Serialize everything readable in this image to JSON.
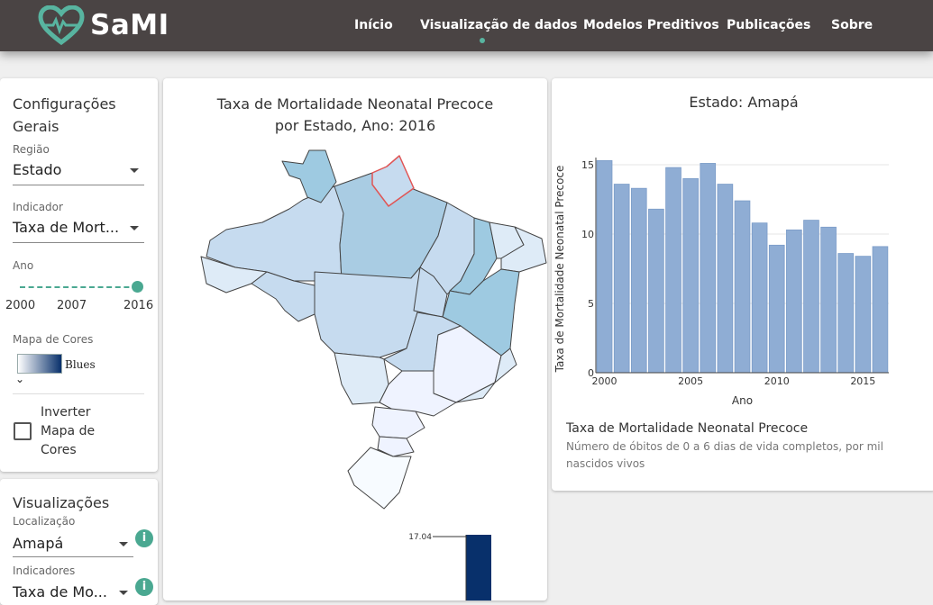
{
  "app": {
    "name": "SaMI"
  },
  "nav": {
    "items": [
      "Início",
      "Visualização de dados",
      "Modelos Preditivos",
      "Publicações",
      "Sobre"
    ],
    "active": "Visualização de dados"
  },
  "config": {
    "title": "Configurações Gerais",
    "regiao_label": "Região",
    "regiao_value": "Estado",
    "indicador_label": "Indicador",
    "indicador_value": "Taxa de Mort...",
    "ano_label": "Ano",
    "ano_ticks": [
      "2000",
      "2007",
      "2016"
    ],
    "ano_selected": 2016,
    "ano_range": [
      2000,
      2016
    ],
    "mapa_label": "Mapa de Cores",
    "mapa_value": "Blues",
    "inverter_label": "Inverter Mapa de Cores",
    "inverter_checked": false
  },
  "vis": {
    "title": "Visualizações",
    "localizacao_label": "Localização",
    "localizacao_value": "Amapá",
    "indicadores_label": "Indicadores",
    "indicadores_value": "Taxa de Mo..."
  },
  "map": {
    "title_line1": "Taxa de Mortalidade Neonatal Precoce",
    "title_line2": "por Estado, Ano: 2016",
    "scale_max_label": "17.04",
    "highlight_color": "#e05555"
  },
  "chart_data": {
    "type": "bar",
    "title": "Estado: Amapá",
    "xlabel": "Ano",
    "ylabel": "Taxa de Mortalidade Neonatal Precoce",
    "x": [
      2000,
      2001,
      2002,
      2003,
      2004,
      2005,
      2006,
      2007,
      2008,
      2009,
      2010,
      2011,
      2012,
      2013,
      2014,
      2015,
      2016
    ],
    "values": [
      15.3,
      13.6,
      13.3,
      11.8,
      14.8,
      14.0,
      15.1,
      13.6,
      12.4,
      10.8,
      9.2,
      10.3,
      11.0,
      10.5,
      8.6,
      8.4,
      9.1
    ],
    "xticks": [
      2000,
      2005,
      2010,
      2015
    ],
    "yticks": [
      0,
      5,
      10,
      15
    ],
    "ylim": [
      0,
      15
    ],
    "bar_color": "#8fadd4",
    "grid": true
  },
  "description": {
    "title": "Taxa de Mortalidade Neonatal Precoce",
    "text": "Número de óbitos de 0 a 6 dias de vida completos, por mil nascidos vivos"
  }
}
